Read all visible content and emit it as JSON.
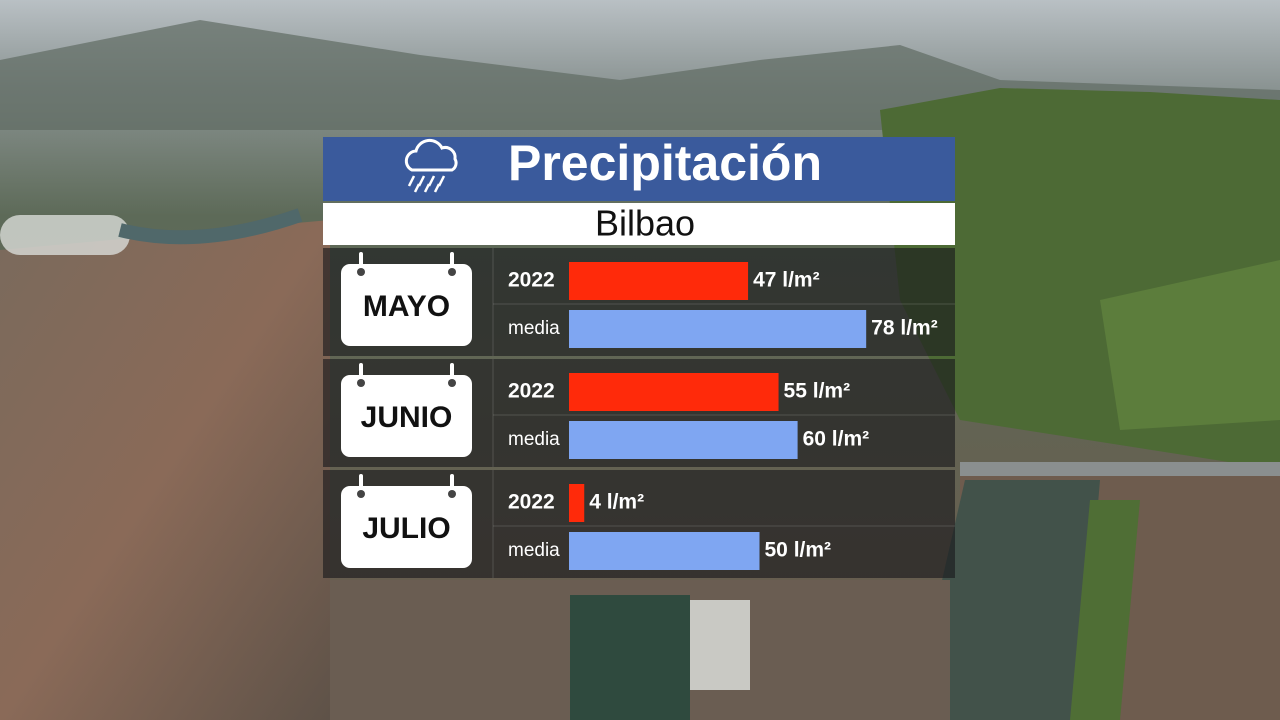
{
  "chart_data": {
    "type": "bar",
    "orientation": "horizontal",
    "title": "Precipitación",
    "subtitle": "Bilbao",
    "categories": [
      "MAYO",
      "JUNIO",
      "JULIO"
    ],
    "series": [
      {
        "name": "2022",
        "color": "#ff2a0a",
        "values": [
          47,
          55,
          4
        ],
        "value_labels": [
          "47 l/m²",
          "55 l/m²",
          "4 l/m²"
        ]
      },
      {
        "name": "media",
        "color": "#7fa6f2",
        "values": [
          78,
          60,
          50
        ],
        "value_labels": [
          "78 l/m²",
          "60 l/m²",
          "50 l/m²"
        ]
      }
    ]
  }
}
